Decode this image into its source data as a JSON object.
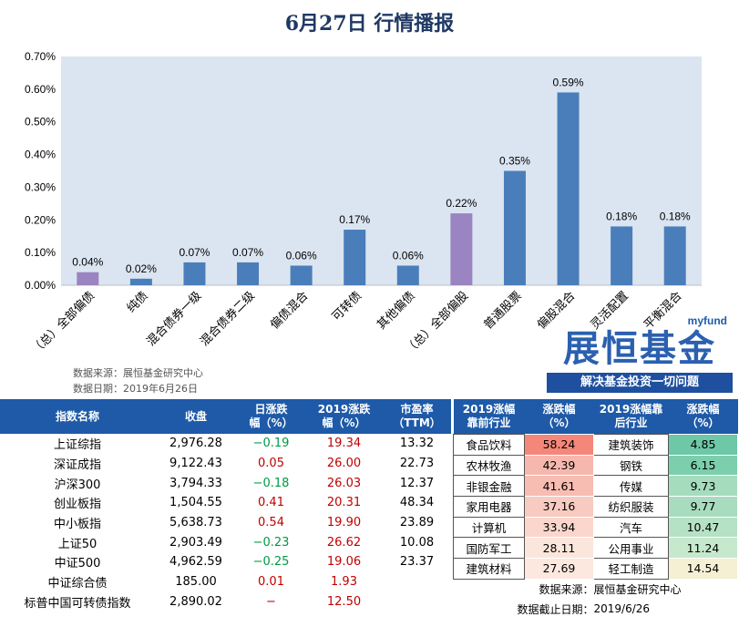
{
  "title": "6月27日  行情播报",
  "chart_data": {
    "type": "bar",
    "categories": [
      "（总）全部偏债",
      "纯债",
      "混合债券一级",
      "混合债券二级",
      "偏债混合",
      "可转债",
      "其他偏债",
      "（总）全部偏股",
      "普通股票",
      "偏股混合",
      "灵活配置",
      "平衡混合"
    ],
    "values": [
      0.04,
      0.02,
      0.07,
      0.07,
      0.06,
      0.17,
      0.06,
      0.22,
      0.35,
      0.59,
      0.18,
      0.18
    ],
    "data_labels": [
      "0.04%",
      "0.02%",
      "0.07%",
      "0.07%",
      "0.06%",
      "0.17%",
      "0.06%",
      "0.22%",
      "0.35%",
      "0.59%",
      "0.18%",
      "0.18%"
    ],
    "bar_colors": [
      "#9b84c2",
      "#4a7ebb",
      "#4a7ebb",
      "#4a7ebb",
      "#4a7ebb",
      "#4a7ebb",
      "#4a7ebb",
      "#9b84c2",
      "#4a7ebb",
      "#4a7ebb",
      "#4a7ebb",
      "#4a7ebb"
    ],
    "yticks": [
      "0.00%",
      "0.10%",
      "0.20%",
      "0.30%",
      "0.40%",
      "0.50%",
      "0.60%",
      "0.70%"
    ],
    "ylim": [
      0,
      0.7
    ],
    "grid": false,
    "background": "#dbe5f1",
    "xlabel": "",
    "ylabel": ""
  },
  "source": {
    "line1": "数据来源：展恒基金研究中心",
    "line2": "数据日期：2019年6月26日"
  },
  "logo": {
    "myfund": "myfund",
    "brand": "展恒基金",
    "slogan": "解决基金投资一切问题"
  },
  "left_table": {
    "headers": [
      "指数名称",
      "收盘",
      "日涨跌\n幅（%）",
      "2019涨跌\n幅（%）",
      "市盈率\n（TTM）"
    ],
    "rows": [
      {
        "name": "上证综指",
        "close": "2,976.28",
        "day": "−0.19",
        "day_sign": "neg",
        "ytd": "19.34",
        "pe": "13.32"
      },
      {
        "name": "深证成指",
        "close": "9,122.43",
        "day": "0.05",
        "day_sign": "pos",
        "ytd": "26.00",
        "pe": "22.73"
      },
      {
        "name": "沪深300",
        "close": "3,794.33",
        "day": "−0.18",
        "day_sign": "neg",
        "ytd": "26.03",
        "pe": "12.37"
      },
      {
        "name": "创业板指",
        "close": "1,504.55",
        "day": "0.41",
        "day_sign": "pos",
        "ytd": "20.31",
        "pe": "48.34"
      },
      {
        "name": "中小板指",
        "close": "5,638.73",
        "day": "0.54",
        "day_sign": "pos",
        "ytd": "19.90",
        "pe": "23.89"
      },
      {
        "name": "上证50",
        "close": "2,903.49",
        "day": "−0.23",
        "day_sign": "neg",
        "ytd": "26.62",
        "pe": "10.08"
      },
      {
        "name": "中证500",
        "close": "4,962.59",
        "day": "−0.25",
        "day_sign": "neg",
        "ytd": "19.06",
        "pe": "23.37"
      },
      {
        "name": "中证综合债",
        "close": "185.00",
        "day": "0.01",
        "day_sign": "pos",
        "ytd": "1.93",
        "pe": ""
      },
      {
        "name": "标普中国可转债指数",
        "close": "2,890.02",
        "day": "−",
        "day_sign": "pos",
        "ytd": "12.50",
        "pe": ""
      }
    ]
  },
  "right_table": {
    "headers": [
      "2019涨幅\n靠前行业",
      "涨跌幅\n（%）",
      "2019涨幅靠\n后行业",
      "涨跌幅\n（%）"
    ],
    "rows": [
      {
        "top": "食品饮料",
        "top_val": "58.24",
        "top_color": "#f4877a",
        "bot": "建筑装饰",
        "bot_val": "4.85",
        "bot_color": "#6cc8a6"
      },
      {
        "top": "农林牧渔",
        "top_val": "42.39",
        "top_color": "#f6b8ae",
        "bot": "钢铁",
        "bot_val": "6.15",
        "bot_color": "#7ccead"
      },
      {
        "top": "非银金融",
        "top_val": "41.61",
        "top_color": "#f7bcb2",
        "bot": "传媒",
        "bot_val": "9.73",
        "bot_color": "#a6dcbe"
      },
      {
        "top": "家用电器",
        "top_val": "37.16",
        "top_color": "#f8cbc1",
        "bot": "纺织服装",
        "bot_val": "9.77",
        "bot_color": "#a8dcbf"
      },
      {
        "top": "计算机",
        "top_val": "33.94",
        "top_color": "#fad6cc",
        "bot": "汽车",
        "bot_val": "10.47",
        "bot_color": "#b5e1c4"
      },
      {
        "top": "国防军工",
        "top_val": "28.11",
        "top_color": "#fbe6dc",
        "bot": "公用事业",
        "bot_val": "11.24",
        "bot_color": "#c6e8cc"
      },
      {
        "top": "建筑材料",
        "top_val": "27.69",
        "top_color": "#fce8df",
        "bot": "轻工制造",
        "bot_val": "14.54",
        "bot_color": "#f5efd4"
      }
    ],
    "footer": [
      {
        "label": "数据来源：",
        "value": "展恒基金研究中心"
      },
      {
        "label": "数据截止日期：",
        "value": "2019/6/26"
      }
    ]
  }
}
